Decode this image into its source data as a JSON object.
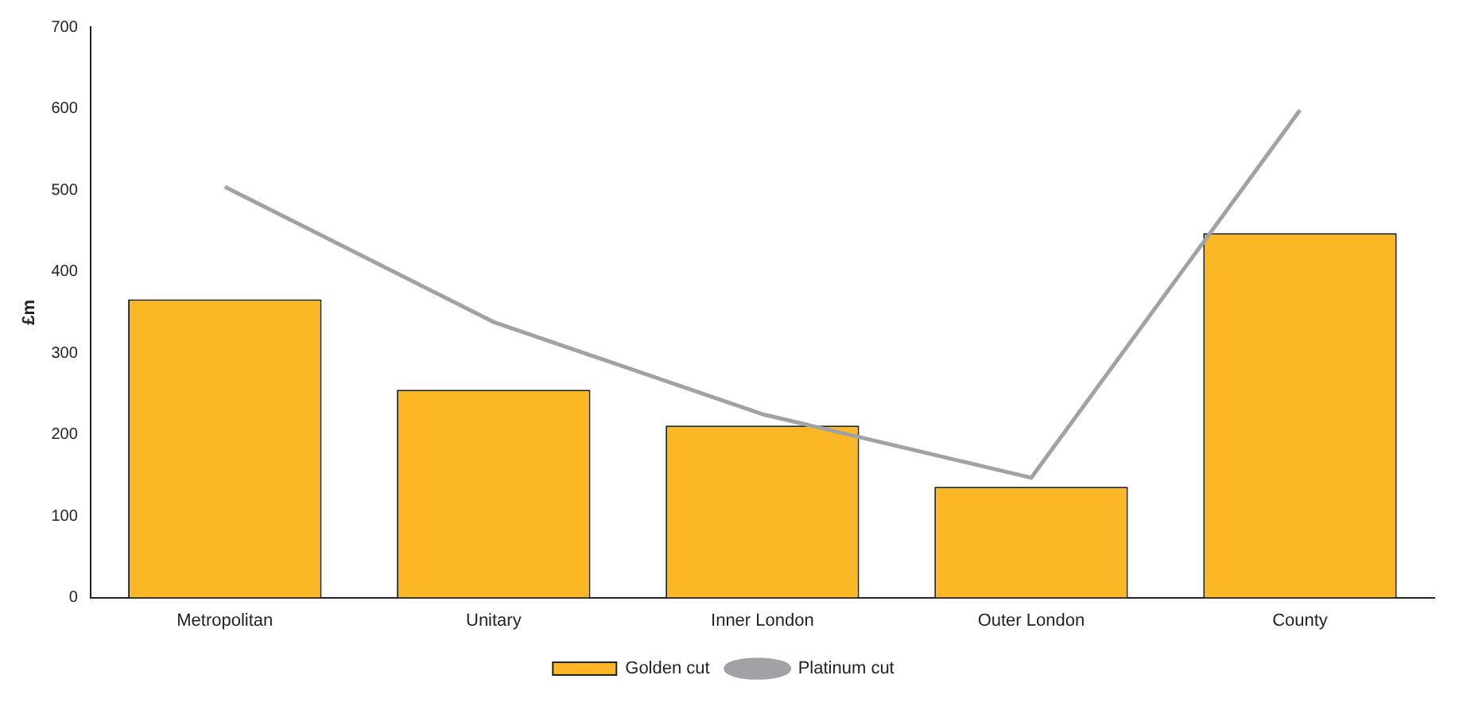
{
  "chart_data": {
    "type": "bar",
    "ylabel": "£m",
    "categories": [
      "Metropolitan",
      "Unitary",
      "Inner London",
      "Outer London",
      "County"
    ],
    "series": [
      {
        "name": "Golden cut",
        "color": "#fbb724",
        "values": [
          366,
          255,
          211,
          136,
          447
        ]
      },
      {
        "name": "Platinum cut",
        "type": "line",
        "color": "#a0a2a6",
        "values": [
          504,
          338,
          225,
          147,
          598
        ]
      }
    ],
    "ylim": [
      0,
      700
    ],
    "yticks": [
      0,
      100,
      200,
      300,
      400,
      500,
      600,
      700
    ],
    "grid": false,
    "legend": "bottom",
    "marker": "none"
  }
}
